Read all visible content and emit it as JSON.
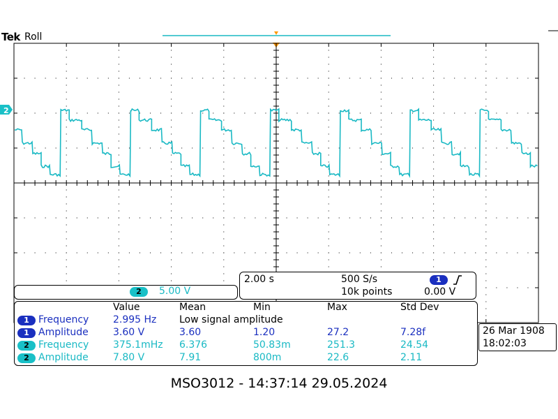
{
  "header": {
    "brand": "Tek",
    "mode": "Roll"
  },
  "colors": {
    "ch1": "#1a2fbf",
    "ch2": "#19c0c7",
    "trace": "#1ab9c4",
    "grid": "#000000"
  },
  "channel_marker": {
    "label": "2"
  },
  "ch2_scale": {
    "channel": "2",
    "value": "5.00 V"
  },
  "timebase": {
    "time_div": "2.00 s",
    "sample_rate": "500 S/s",
    "record_length": "10k points",
    "trigger_channel": "1",
    "trigger_slope_icon": "rising-edge-icon",
    "trigger_level": "0.00 V"
  },
  "measurements": {
    "headers": [
      "Value",
      "Mean",
      "Min",
      "Max",
      "Std Dev"
    ],
    "rows": [
      {
        "ch": "1",
        "name": "Frequency",
        "cells": [
          "2.995 Hz",
          "Low signal amplitude",
          "",
          "",
          ""
        ]
      },
      {
        "ch": "1",
        "name": "Amplitude",
        "cells": [
          "3.60 V",
          "3.60",
          "1.20",
          "27.2",
          "7.28f"
        ]
      },
      {
        "ch": "2",
        "name": "Frequency",
        "cells": [
          "375.1mHz",
          "6.376",
          "50.83m",
          "251.3",
          "24.54"
        ]
      },
      {
        "ch": "2",
        "name": "Amplitude",
        "cells": [
          "7.80 V",
          "7.91",
          "800m",
          "22.6",
          "2.11"
        ]
      }
    ]
  },
  "datetime": {
    "date": "26 Mar  1908",
    "time": "18:02:03"
  },
  "footer": "MSO3012 - 14:37:14   29.05.2024"
}
